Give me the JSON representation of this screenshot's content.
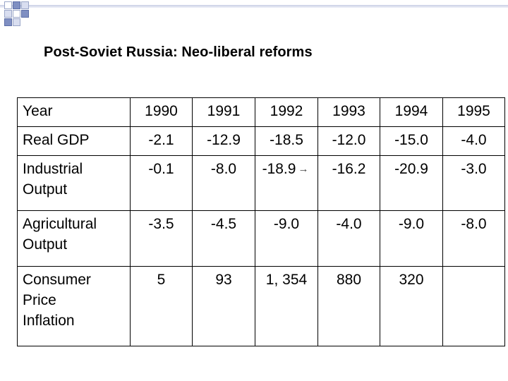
{
  "slide": {
    "title": "Post-Soviet Russia: Neo-liberal reforms"
  },
  "table": {
    "header": {
      "label": "Year",
      "years": [
        "1990",
        "1991",
        "1992",
        "1993",
        "1994",
        "1995"
      ]
    },
    "rows": [
      {
        "label_lines": [
          "Real GDP"
        ],
        "values": [
          "-2.1",
          "-12.9",
          "-18.5",
          "-12.0",
          "-15.0",
          "-4.0"
        ]
      },
      {
        "label_lines": [
          "Industrial",
          "Output"
        ],
        "values": [
          "-0.1",
          "-8.0",
          "-18.9",
          "-16.2",
          "-20.9",
          "-3.0"
        ],
        "arrow": "→"
      },
      {
        "label_lines": [
          "Agricultural",
          "Output"
        ],
        "values": [
          "-3.5",
          "-4.5",
          "-9.0",
          "-4.0",
          "-9.0",
          "-8.0"
        ]
      },
      {
        "label_lines": [
          "Consumer",
          "Price",
          "Inflation"
        ],
        "values": [
          "5",
          "93",
          "1, 354",
          "880",
          "320",
          ""
        ]
      }
    ]
  },
  "colors": {
    "corner_blue": "#7f8fc2",
    "corner_light": "#d9def0",
    "border": "#000000"
  }
}
